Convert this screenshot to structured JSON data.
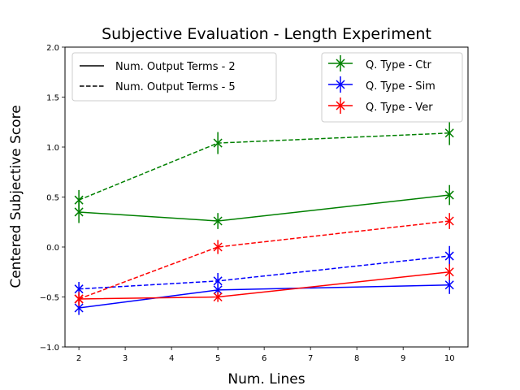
{
  "chart_data": {
    "type": "line",
    "title": "Subjective Evaluation - Length Experiment",
    "xlabel": "Num. Lines",
    "ylabel": "Centered Subjective Score",
    "xlim": [
      1.7,
      10.4
    ],
    "ylim": [
      -1.0,
      2.0
    ],
    "xticks": [
      2,
      3,
      4,
      5,
      6,
      7,
      8,
      9,
      10
    ],
    "yticks": [
      -1.0,
      -0.5,
      0.0,
      0.5,
      1.0,
      1.5,
      2.0
    ],
    "x": [
      2,
      5,
      10
    ],
    "series": [
      {
        "name": "Q. Type - Ctr, Num. Output Terms - 2",
        "color": "#008000",
        "dash": "solid",
        "values": [
          0.35,
          0.26,
          0.52
        ],
        "err": [
          0.11,
          0.08,
          0.1
        ]
      },
      {
        "name": "Q. Type - Ctr, Num. Output Terms - 5",
        "color": "#008000",
        "dash": "dashed",
        "values": [
          0.47,
          1.04,
          1.14
        ],
        "err": [
          0.1,
          0.11,
          0.12
        ]
      },
      {
        "name": "Q. Type - Sim, Num. Output Terms - 2",
        "color": "#0000ff",
        "dash": "solid",
        "values": [
          -0.61,
          -0.43,
          -0.38
        ],
        "err": [
          0.07,
          0.06,
          0.09
        ]
      },
      {
        "name": "Q. Type - Sim, Num. Output Terms - 5",
        "color": "#0000ff",
        "dash": "dashed",
        "values": [
          -0.42,
          -0.34,
          -0.09
        ],
        "err": [
          0.07,
          0.08,
          0.1
        ]
      },
      {
        "name": "Q. Type - Ver, Num. Output Terms - 2",
        "color": "#ff0000",
        "dash": "solid",
        "values": [
          -0.52,
          -0.5,
          -0.25
        ],
        "err": [
          0.05,
          0.05,
          0.08
        ]
      },
      {
        "name": "Q. Type - Ver, Num. Output Terms - 5",
        "color": "#ff0000",
        "dash": "dashed",
        "values": [
          -0.52,
          0.0,
          0.26
        ],
        "err": [
          0.07,
          0.07,
          0.08
        ]
      }
    ],
    "legend_styles": {
      "location": "upper-left",
      "entries": [
        {
          "label": "Num. Output Terms - 2",
          "dash": "solid",
          "color": "#000000"
        },
        {
          "label": "Num. Output Terms - 5",
          "dash": "dashed",
          "color": "#000000"
        }
      ]
    },
    "legend_types": {
      "location": "upper-right",
      "entries": [
        {
          "label": "Q. Type - Ctr",
          "color": "#008000"
        },
        {
          "label": "Q. Type - Sim",
          "color": "#0000ff"
        },
        {
          "label": "Q. Type - Ver",
          "color": "#ff0000"
        }
      ]
    }
  }
}
